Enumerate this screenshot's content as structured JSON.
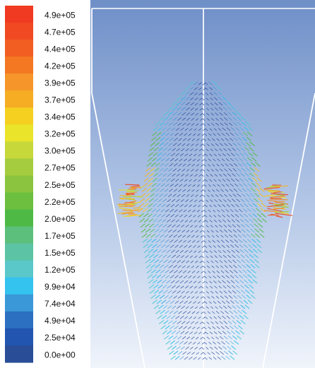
{
  "chart_data": {
    "type": "vector-field",
    "title": "",
    "colorbar": {
      "placement": "left",
      "tick_labels": [
        "4.9e+05",
        "4.7e+05",
        "4.4e+05",
        "4.2e+05",
        "3.9e+05",
        "3.7e+05",
        "3.4e+05",
        "3.2e+05",
        "3.0e+05",
        "2.7e+05",
        "2.5e+05",
        "2.2e+05",
        "2.0e+05",
        "1.7e+05",
        "1.5e+05",
        "1.2e+05",
        "9.9e+04",
        "7.4e+04",
        "4.9e+04",
        "2.5e+04",
        "0.0e+00"
      ],
      "colors": [
        "#f03a22",
        "#f14a22",
        "#f25e22",
        "#f47822",
        "#f6962a",
        "#f6ad24",
        "#f5d020",
        "#eae42a",
        "#c7d83a",
        "#a5cc3f",
        "#8bc43f",
        "#6cbf3f",
        "#4eba45",
        "#5cbf7b",
        "#5cc4a4",
        "#5ac8c9",
        "#34c2ef",
        "#3a98d8",
        "#2c70c2",
        "#2255b0",
        "#2a4d98"
      ],
      "range": [
        0,
        490000
      ]
    },
    "domain_axis": {
      "symmetry_line": true
    }
  },
  "colors": {
    "background_top": "#6f8fc8",
    "background_bottom": "#e8eef8",
    "outline": "#ffffff",
    "low_vector": "#1a3f95",
    "mid_vector": "#4ec5df",
    "high_vector": "#f03a22"
  }
}
